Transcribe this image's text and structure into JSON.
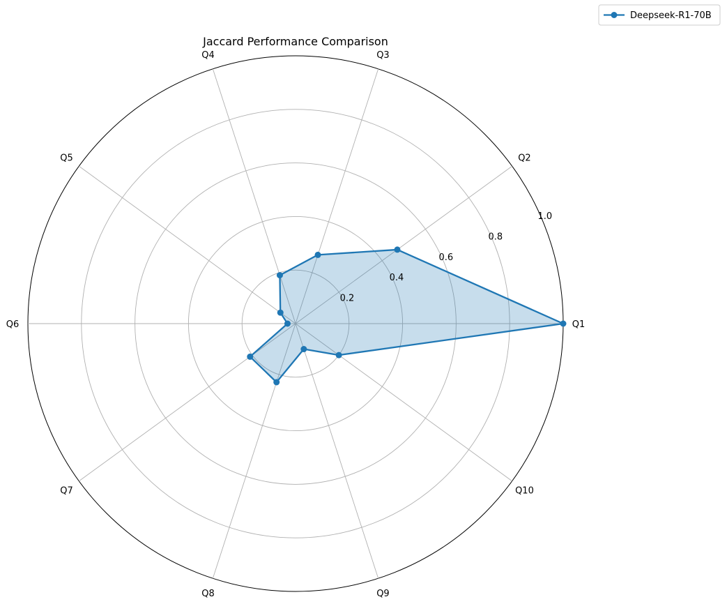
{
  "chart_data": {
    "type": "radar",
    "title": "Jaccard Performance Comparison",
    "categories": [
      "Q1",
      "Q2",
      "Q3",
      "Q4",
      "Q5",
      "Q6",
      "Q7",
      "Q8",
      "Q9",
      "Q10"
    ],
    "series": [
      {
        "name": "Deepseek-R1-70B",
        "values": [
          1.0,
          0.47,
          0.27,
          0.19,
          0.07,
          0.03,
          0.21,
          0.23,
          0.1,
          0.2
        ],
        "color": "#1f77b4",
        "fill_color": "#1f77b4",
        "fill_opacity": 0.25
      }
    ],
    "rlim": [
      0,
      1.0
    ],
    "radial_ticks": [
      0.2,
      0.4,
      0.6,
      0.8,
      1.0
    ],
    "radial_tick_labels": [
      "0.2",
      "0.4",
      "0.6",
      "0.8",
      "1.0"
    ],
    "grid": true,
    "legend_position": "top-right"
  }
}
